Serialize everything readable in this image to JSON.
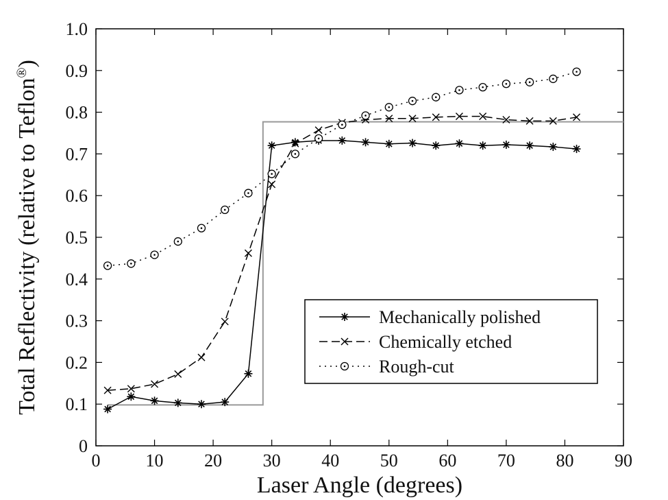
{
  "chart_data": {
    "type": "line",
    "xlabel": "Laser Angle (degrees)",
    "ylabel": "Total Reflectivity (relative to Teflon",
    "ylabel_sup": "®",
    "ylabel_close": ")",
    "xlim": [
      0,
      90
    ],
    "ylim": [
      0,
      1.0
    ],
    "xticks": [
      0,
      10,
      20,
      30,
      40,
      50,
      60,
      70,
      80,
      90
    ],
    "xtick_labels": [
      "0",
      "10",
      "20",
      "30",
      "40",
      "50",
      "60",
      "70",
      "80",
      "90"
    ],
    "yticks": [
      0,
      0.1,
      0.2,
      0.3,
      0.4,
      0.5,
      0.6,
      0.7,
      0.8,
      0.9,
      1.0
    ],
    "ytick_labels": [
      "0",
      "0.1",
      "0.2",
      "0.3",
      "0.4",
      "0.5",
      "0.6",
      "0.7",
      "0.8",
      "0.9",
      "1.0"
    ],
    "grid": false,
    "legend": "lower-right",
    "step_reference": {
      "x": [
        2,
        28.5,
        28.5,
        90
      ],
      "y": [
        0.098,
        0.098,
        0.777,
        0.777
      ],
      "color": "#999999"
    },
    "series": [
      {
        "name": "Mechanically polished",
        "marker": "star",
        "linestyle": "solid",
        "color": "#000000",
        "x": [
          2,
          6,
          10,
          14,
          18,
          22,
          26,
          30,
          34,
          38,
          42,
          46,
          50,
          54,
          58,
          62,
          66,
          70,
          74,
          78,
          82
        ],
        "y": [
          0.088,
          0.118,
          0.108,
          0.103,
          0.1,
          0.105,
          0.173,
          0.72,
          0.728,
          0.732,
          0.732,
          0.728,
          0.724,
          0.726,
          0.72,
          0.725,
          0.72,
          0.722,
          0.72,
          0.717,
          0.712
        ]
      },
      {
        "name": "Chemically etched",
        "marker": "x",
        "linestyle": "dashed",
        "color": "#000000",
        "x": [
          2,
          6,
          10,
          14,
          18,
          22,
          26,
          30,
          34,
          38,
          42,
          46,
          50,
          54,
          58,
          62,
          66,
          70,
          74,
          78,
          82
        ],
        "y": [
          0.133,
          0.137,
          0.148,
          0.172,
          0.212,
          0.298,
          0.462,
          0.627,
          0.725,
          0.757,
          0.775,
          0.782,
          0.785,
          0.785,
          0.788,
          0.79,
          0.79,
          0.782,
          0.779,
          0.779,
          0.788
        ]
      },
      {
        "name": "Rough-cut",
        "marker": "circle",
        "linestyle": "dotted",
        "color": "#000000",
        "x": [
          2,
          6,
          10,
          14,
          18,
          22,
          26,
          30,
          34,
          38,
          42,
          46,
          50,
          54,
          58,
          62,
          66,
          70,
          74,
          78,
          82
        ],
        "y": [
          0.432,
          0.437,
          0.458,
          0.49,
          0.522,
          0.566,
          0.606,
          0.652,
          0.7,
          0.737,
          0.77,
          0.792,
          0.812,
          0.827,
          0.836,
          0.853,
          0.86,
          0.868,
          0.872,
          0.88,
          0.897
        ]
      }
    ]
  }
}
